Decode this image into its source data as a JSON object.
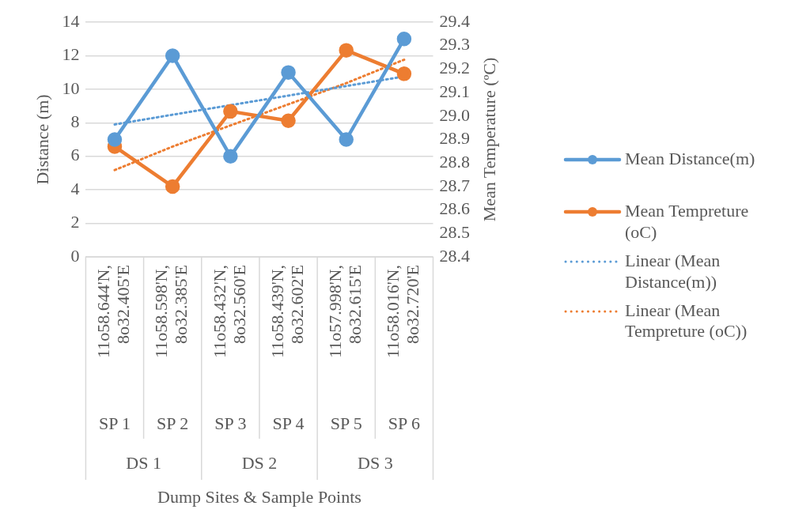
{
  "chart_data": {
    "type": "line",
    "ylabel": "Distance (m)",
    "y2label": "Mean Temperature (ºC)",
    "categories": [
      "11o58.644'N, 8o32.405'E",
      "11o58.598'N, 8o32.385'E",
      "11o58.432'N, 8o32.560'E",
      "11o58.439'N, 8o32.602'E",
      "11o57.998'N, 8o32.615'E",
      "11o58.016'N, 8o32.720'E"
    ],
    "series": [
      {
        "name": "Mean Distance(m)",
        "color": "#5b9bd5",
        "values": [
          7,
          12,
          6,
          11,
          7,
          13
        ],
        "marker": "circle",
        "line_style": "solid"
      },
      {
        "name": "Mean Tempreture (oC)",
        "color": "#ed7d31",
        "values": [
          28.87,
          28.7,
          29.02,
          28.98,
          29.28,
          29.18
        ],
        "axis": "y2",
        "marker": "circle",
        "line_style": "solid"
      },
      {
        "name": "Linear (Mean Distance(m))",
        "color": "#5b9bd5",
        "values": [
          7.9,
          8.48,
          9.05,
          9.62,
          10.19,
          10.76
        ],
        "marker": "none",
        "line_style": "dotted"
      },
      {
        "name": "Linear (Mean Tempreture (oC))",
        "color": "#ed7d31",
        "values": [
          28.77,
          28.87,
          28.96,
          29.05,
          29.14,
          29.24
        ],
        "axis": "y2",
        "marker": "none",
        "line_style": "dotted"
      }
    ],
    "ylim": [
      0,
      14
    ],
    "yticks": [
      0,
      2,
      4,
      6,
      8,
      10,
      12,
      14
    ],
    "y2lim": [
      28.4,
      29.4
    ],
    "y2ticks": [
      {
        "value": 28.4,
        "label": "28.4"
      },
      {
        "value": 28.5,
        "label": "28.5"
      },
      {
        "value": 28.6,
        "label": "28.6"
      },
      {
        "value": 28.7,
        "label": "28.7"
      },
      {
        "value": 28.8,
        "label": "28.8"
      },
      {
        "value": 28.9,
        "label": "28.9"
      },
      {
        "value": 29.0,
        "label": "29.0"
      },
      {
        "value": 29.1,
        "label": "29.1"
      },
      {
        "value": 29.2,
        "label": "29.2"
      },
      {
        "value": 29.3,
        "label": "29.3"
      },
      {
        "value": 29.4,
        "label": "29.4"
      }
    ],
    "grid": "y",
    "legend": "right",
    "annotations": [
      "SP 1",
      "SP 2",
      "SP 3",
      "SP 4",
      "SP 5",
      "SP 6",
      "DS 1",
      "DS 2",
      "DS 3",
      "Dump Sites & Sample Points"
    ]
  }
}
